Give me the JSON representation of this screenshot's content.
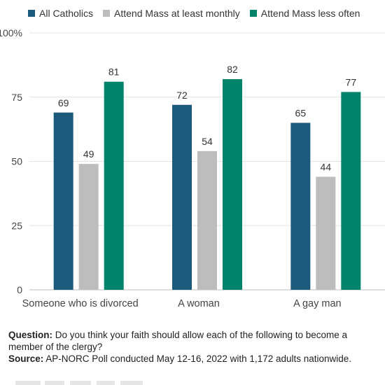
{
  "chart_data": {
    "type": "bar",
    "categories": [
      "Someone who is divorced",
      "A woman",
      "A gay man"
    ],
    "series": [
      {
        "name": "All Catholics",
        "values": [
          69,
          72,
          65
        ],
        "color": "#1b5a7a"
      },
      {
        "name": "Attend Mass at least monthly",
        "values": [
          49,
          54,
          44
        ],
        "color": "#bdbdbd"
      },
      {
        "name": "Attend Mass less often",
        "values": [
          81,
          82,
          77
        ],
        "color": "#00836b"
      }
    ],
    "y_ticks": [
      "0",
      "25",
      "50",
      "75",
      "100%"
    ],
    "ylim": [
      0,
      100
    ],
    "grid": true,
    "legend": "top-left",
    "data_labels": true
  },
  "footnote": {
    "question_label": "Question:",
    "question_text": "Do you think your faith should allow each of the following to become a member of the clergy?",
    "source_label": "Source:",
    "source_text": "AP-NORC Poll conducted May 12-16, 2022 with 1,172 adults nationwide."
  }
}
